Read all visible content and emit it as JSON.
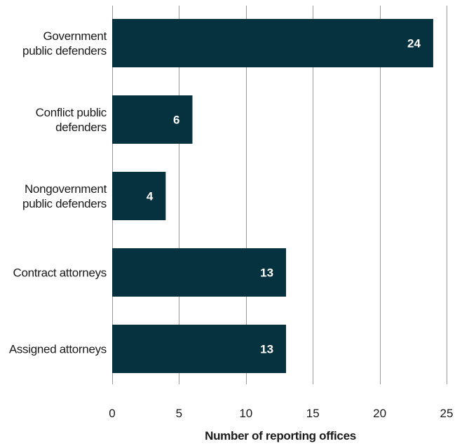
{
  "chart_data": {
    "type": "bar",
    "orientation": "horizontal",
    "categories": [
      [
        "Government",
        "public defenders"
      ],
      [
        "Conflict public",
        "defenders"
      ],
      [
        "Nongovernment",
        "public defenders"
      ],
      [
        "Contract attorneys"
      ],
      [
        "Assigned attorneys"
      ]
    ],
    "values": [
      24,
      6,
      4,
      13,
      13
    ],
    "xlabel": "Number of reporting offices",
    "ylabel": "",
    "xlim": [
      0,
      25
    ],
    "xticks": [
      0,
      5,
      10,
      15,
      20,
      25
    ],
    "grid": "vertical",
    "legend": "none",
    "bar_color": "#06313f",
    "value_label_color": "#ffffff"
  }
}
